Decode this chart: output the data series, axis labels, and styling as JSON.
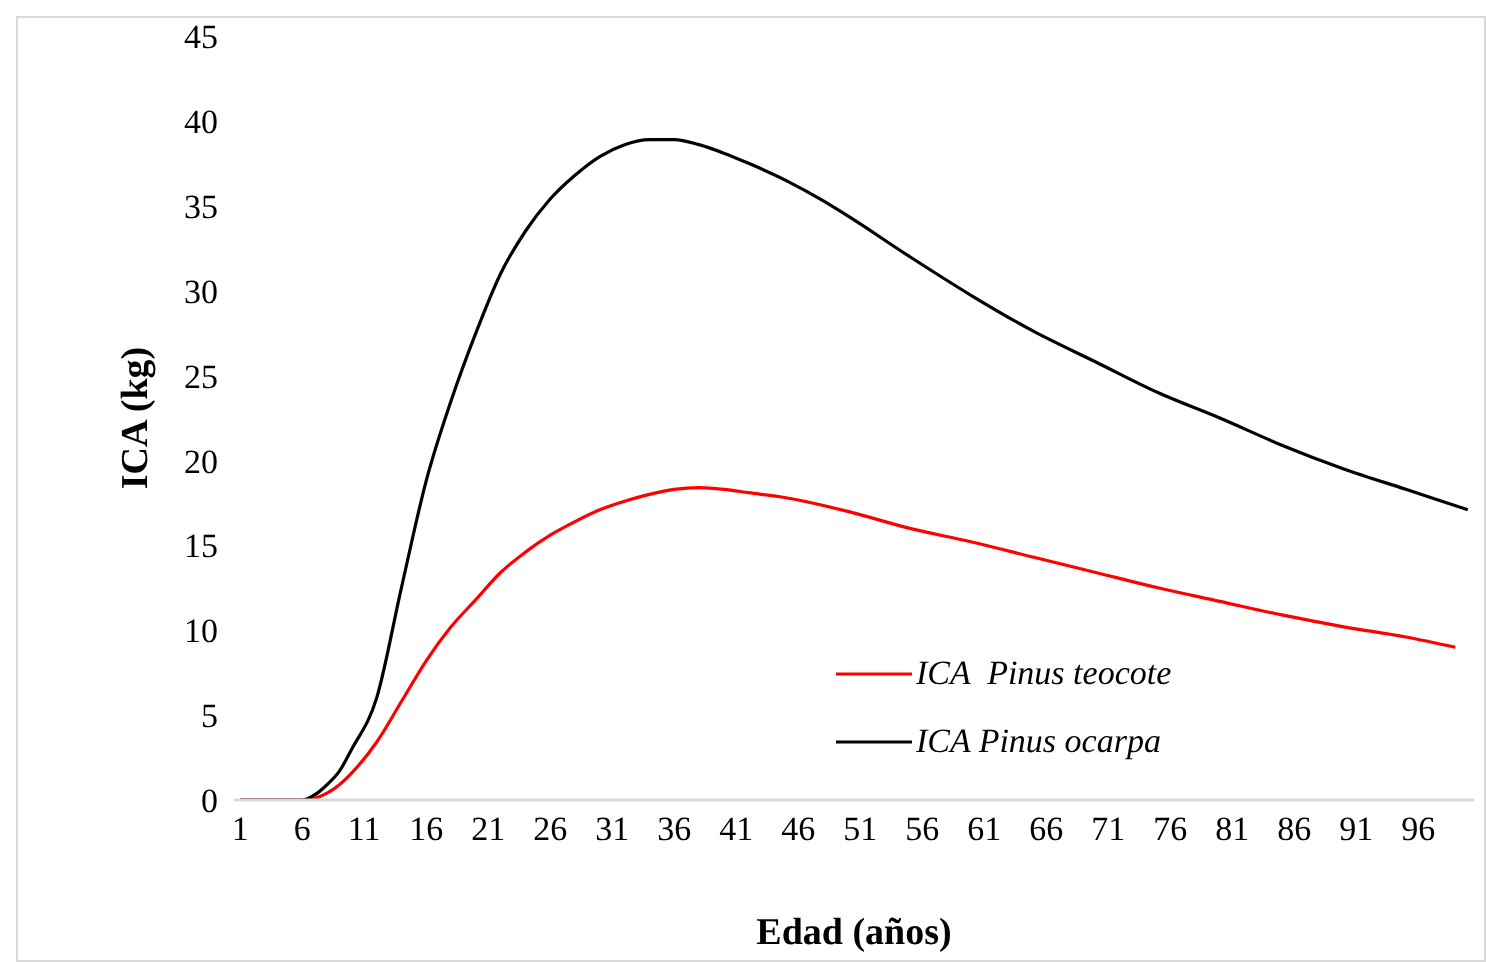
{
  "chart_data": {
    "type": "line",
    "xlabel": "Edad (años)",
    "ylabel": "ICA (kg)",
    "xlim": [
      0.5,
      100.5
    ],
    "xticks": [
      1,
      6,
      11,
      16,
      21,
      26,
      31,
      36,
      41,
      46,
      51,
      56,
      61,
      66,
      71,
      76,
      81,
      86,
      91,
      96
    ],
    "ylim": [
      0,
      45
    ],
    "yticks": [
      0,
      5,
      10,
      15,
      20,
      25,
      30,
      35,
      40,
      45
    ],
    "grid": false,
    "legend": "bottom right",
    "marker": "none",
    "line_style": "solid",
    "series": [
      {
        "name": "ICA  Pinus teocote",
        "color": "#ff0000",
        "x": [
          1,
          6,
          7,
          8,
          9,
          10,
          12,
          14,
          16,
          18,
          20,
          22,
          24,
          26,
          28,
          30,
          32,
          34,
          36,
          38,
          40,
          42,
          45,
          50,
          55,
          60,
          65,
          70,
          75,
          80,
          85,
          90,
          95,
          99
        ],
        "values": [
          0,
          0,
          0.1,
          0.4,
          0.9,
          1.6,
          3.4,
          5.8,
          8.2,
          10.2,
          11.8,
          13.4,
          14.6,
          15.6,
          16.4,
          17.1,
          17.6,
          18.0,
          18.3,
          18.4,
          18.3,
          18.1,
          17.8,
          17.0,
          16.0,
          15.2,
          14.3,
          13.4,
          12.5,
          11.7,
          10.9,
          10.2,
          9.6,
          9.0
        ]
      },
      {
        "name": "ICA Pinus ocarpa",
        "color": "#000000",
        "x": [
          1,
          6,
          7,
          8,
          9,
          10,
          12,
          14,
          16,
          18,
          20,
          22,
          24,
          26,
          28,
          30,
          32,
          34,
          36,
          38,
          40,
          42,
          45,
          48,
          50,
          55,
          60,
          65,
          70,
          75,
          80,
          85,
          90,
          95,
          100
        ],
        "values": [
          0,
          0,
          0.3,
          0.9,
          1.7,
          3.0,
          6.0,
          12.5,
          18.8,
          23.5,
          27.5,
          31.0,
          33.5,
          35.4,
          36.8,
          37.9,
          38.6,
          38.9,
          38.9,
          38.6,
          38.1,
          37.5,
          36.5,
          35.3,
          34.4,
          32.0,
          29.7,
          27.6,
          25.8,
          24.0,
          22.5,
          20.9,
          19.5,
          18.3,
          17.1
        ]
      }
    ]
  }
}
